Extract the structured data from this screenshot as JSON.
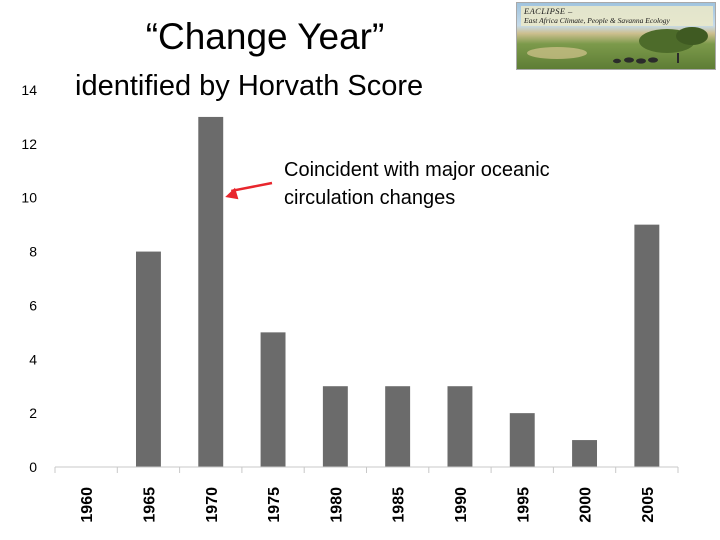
{
  "title": {
    "line1": "“Change Year”",
    "line2": "identified by Horvath Score"
  },
  "logo": {
    "name": "EACLIPSE –",
    "tagline": "East Africa Climate, People & Savanna Ecology"
  },
  "annotation": {
    "text": "Coincident with major oceanic\ncirculation changes",
    "arrow_color": "#e8262d",
    "points_to": "1970"
  },
  "chart_data": {
    "type": "bar",
    "categories": [
      "1960",
      "1965",
      "1970",
      "1975",
      "1980",
      "1985",
      "1990",
      "1995",
      "2000",
      "2005"
    ],
    "values": [
      0,
      8,
      13,
      5,
      3,
      3,
      3,
      2,
      1,
      9
    ],
    "ylim": [
      0,
      14
    ],
    "yticks": [
      0,
      2,
      4,
      6,
      8,
      10,
      12,
      14
    ],
    "grid": false,
    "bar_color": "#6b6b6b",
    "axis_color": "#c8c8c8"
  }
}
